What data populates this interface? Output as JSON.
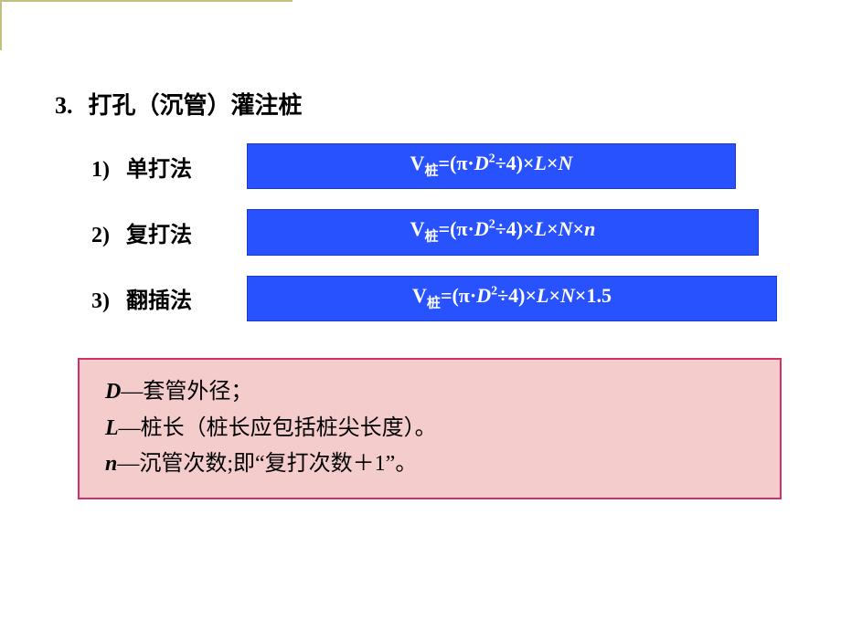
{
  "heading": {
    "num": "3.",
    "text": "打孔（沉管）灌注桩"
  },
  "methods": [
    {
      "idx": "1)",
      "label": "单打法",
      "box_class": "fb1",
      "formula": {
        "prefix": "V",
        "sub": "桩",
        "expr_html": "=(π·<i>D</i><sup class='sup'>2</sup>÷4)×<i>L</i>×<i>N</i>"
      }
    },
    {
      "idx": "2)",
      "label": "复打法",
      "box_class": "fb2",
      "formula": {
        "prefix": "V",
        "sub": "桩",
        "expr_html": "=(π·<i>D</i><sup class='sup'>2</sup>÷4)×<i>L</i>×<i>N</i>×<i>n</i>"
      }
    },
    {
      "idx": "3)",
      "label": "翻插法",
      "box_class": "fb3",
      "formula": {
        "prefix": "V",
        "sub": "桩",
        "expr_html": "=(π·<i>D</i><sup class='sup'>2</sup>÷4)×<i>L</i>×<i>N</i>×1.5"
      }
    }
  ],
  "legend": [
    {
      "var": "D",
      "desc": "—套管外径；"
    },
    {
      "var": "L",
      "desc": "—桩长（桩长应包括桩尖长度）。"
    },
    {
      "var": "n",
      "desc": "—沉管次数;即“复打次数＋1”。"
    }
  ],
  "colors": {
    "formula_bg": "#2952ff",
    "formula_border": "#1a3acc",
    "formula_text": "#ffffff",
    "legend_bg": "#f5cccc",
    "legend_border": "#cc3366",
    "corner": "#c0c080"
  }
}
